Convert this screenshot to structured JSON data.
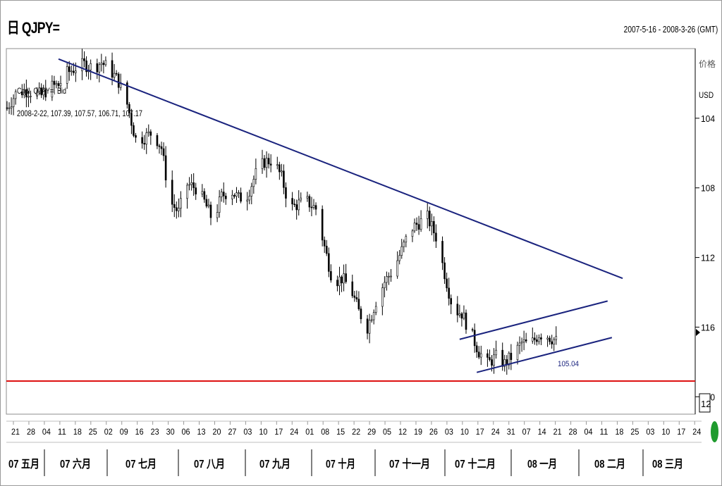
{
  "header": {
    "title": "日 QJPY=",
    "date_range": "2007-5-16 - 2008-3-26 (GMT)"
  },
  "legend": {
    "line1": "Cndl, QJPY=, Bid",
    "line2": "2008-2-22, 107.39, 107.57, 106.71, 107.17"
  },
  "axis": {
    "price_label": "价格",
    "currency_label": "USD",
    "y_ticks": [
      "120",
      "116",
      "112",
      "108",
      "104"
    ],
    "right_box": "12"
  },
  "annotation": {
    "low_label": "105.04"
  },
  "colors": {
    "trendline": "#1a237e",
    "support": "#dd1111",
    "candle": "#000000",
    "scroll_indicator": "#1f9b2e"
  },
  "chart_data": {
    "type": "candlestick",
    "series_name": "QJPY=",
    "ylim": [
      103,
      124
    ],
    "y_ticks": [
      104,
      108,
      112,
      116,
      120
    ],
    "x_day_labels": [
      "21",
      "28",
      "04",
      "11",
      "18",
      "25",
      "02",
      "09",
      "16",
      "23",
      "30",
      "06",
      "13",
      "20",
      "27",
      "03",
      "10",
      "17",
      "24",
      "01",
      "08",
      "15",
      "22",
      "29",
      "05",
      "12",
      "19",
      "26",
      "03",
      "10",
      "17",
      "24",
      "31",
      "07",
      "14",
      "21",
      "28",
      "04",
      "11",
      "18",
      "25",
      "03",
      "10",
      "17",
      "24"
    ],
    "months": [
      "07 五月",
      "07 六月",
      "07 七月",
      "07 八月",
      "07 九月",
      "07 十月",
      "07 十一月",
      "07 十二月",
      "08 一月",
      "08 二月",
      "08 三月"
    ],
    "close_profile": [
      [
        0,
        120.6
      ],
      [
        4,
        121.4
      ],
      [
        8,
        121.6
      ],
      [
        12,
        121.5
      ],
      [
        16,
        121.3
      ],
      [
        20,
        121.8
      ],
      [
        24,
        121.9
      ],
      [
        28,
        122.6
      ],
      [
        32,
        122.9
      ],
      [
        36,
        123.1
      ],
      [
        40,
        122.9
      ],
      [
        44,
        123.2
      ],
      [
        48,
        122.8
      ],
      [
        52,
        122.1
      ],
      [
        56,
        120.8
      ],
      [
        60,
        118.8
      ],
      [
        64,
        118.9
      ],
      [
        68,
        119.2
      ],
      [
        72,
        118.3
      ],
      [
        76,
        115.2
      ],
      [
        80,
        114.6
      ],
      [
        84,
        116.2
      ],
      [
        88,
        116.0
      ],
      [
        92,
        115.2
      ],
      [
        96,
        114.1
      ],
      [
        100,
        115.5
      ],
      [
        104,
        115.9
      ],
      [
        108,
        115.4
      ],
      [
        112,
        115.6
      ],
      [
        116,
        116.8
      ],
      [
        120,
        117.5
      ],
      [
        124,
        117.6
      ],
      [
        128,
        116.6
      ],
      [
        132,
        114.8
      ],
      [
        136,
        115.1
      ],
      [
        140,
        115.2
      ],
      [
        144,
        114.8
      ],
      [
        148,
        112.6
      ],
      [
        152,
        110.6
      ],
      [
        156,
        110.8
      ],
      [
        160,
        110.3
      ],
      [
        164,
        108.9
      ],
      [
        168,
        108.0
      ],
      [
        172,
        109.5
      ],
      [
        176,
        110.6
      ],
      [
        180,
        111.3
      ],
      [
        184,
        112.4
      ],
      [
        188,
        113.6
      ],
      [
        192,
        114.0
      ],
      [
        196,
        114.3
      ],
      [
        200,
        113.2
      ],
      [
        204,
        111.1
      ],
      [
        208,
        109.0
      ],
      [
        212,
        108.8
      ],
      [
        216,
        107.7
      ],
      [
        220,
        106.6
      ],
      [
        224,
        105.9
      ],
      [
        228,
        106.3
      ],
      [
        232,
        105.9
      ],
      [
        236,
        106.4
      ],
      [
        240,
        107.1
      ],
      [
        244,
        107.0
      ],
      [
        248,
        107.6
      ],
      [
        252,
        107.5
      ],
      [
        256,
        107.2
      ]
    ],
    "last_index": 256,
    "lines": {
      "long_trend": {
        "from": [
          24,
          123.4
        ],
        "to": [
          287,
          110.8
        ]
      },
      "channel_upper": {
        "from": [
          211,
          107.3
        ],
        "to": [
          280,
          109.5
        ]
      },
      "channel_lower": {
        "from": [
          219,
          105.4
        ],
        "to": [
          282,
          107.4
        ]
      },
      "support": {
        "value": 104.9
      },
      "low_marker": {
        "value": 105.04
      }
    }
  }
}
